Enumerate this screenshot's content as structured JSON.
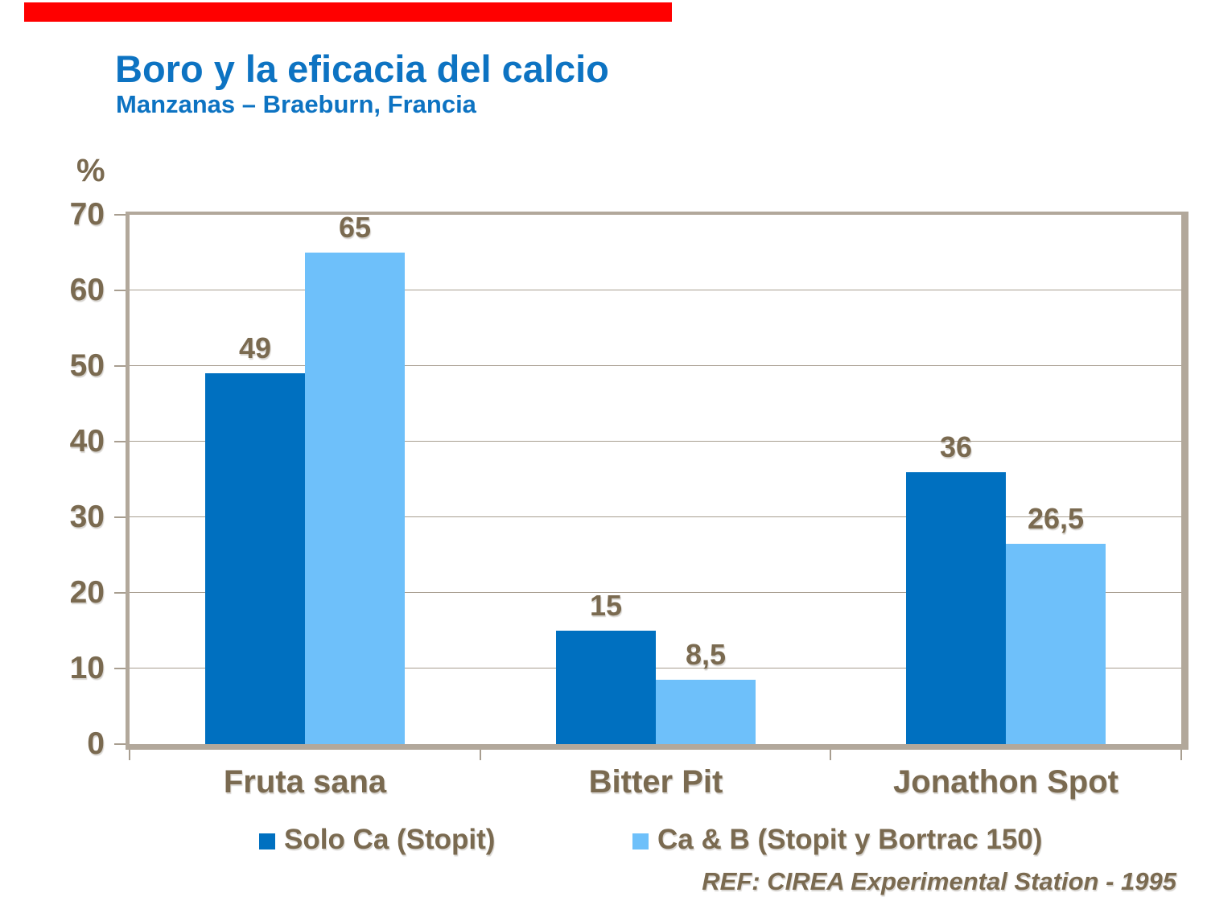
{
  "slide": {
    "accent_color": "#FF0000",
    "title_color": "#0D73C2",
    "text_color": "#7A6A50"
  },
  "header": {
    "title": "Boro y la eficacia del calcio",
    "subtitle": "Manzanas – Braeburn, Francia"
  },
  "footer": {
    "ref": "REF: CIREA Experimental Station - 1995"
  },
  "chart_data": {
    "type": "bar",
    "title": "Boro y la eficacia del calcio",
    "subtitle": "Manzanas – Braeburn, Francia",
    "unit_label": "%",
    "categories": [
      "Fruta sana",
      "Bitter Pit",
      "Jonathon Spot"
    ],
    "series": [
      {
        "name": "Solo Ca (Stopit)",
        "color": "#0070C0",
        "values": [
          49,
          15,
          36
        ],
        "labels": [
          "49",
          "15",
          "36"
        ]
      },
      {
        "name": "Ca & B (Stopit y Bortrac 150)",
        "color": "#6EC0FA",
        "values": [
          65,
          8.5,
          26.5
        ],
        "labels": [
          "65",
          "8,5",
          "26,5"
        ]
      }
    ],
    "ylim": [
      0,
      70
    ],
    "yticks": [
      0,
      10,
      20,
      30,
      40,
      50,
      60,
      70
    ],
    "grid": true,
    "legend_position": "bottom",
    "axis_text_color": "#7A6A50",
    "border_color": "#B2A89B",
    "grid_color": "#A89E90"
  }
}
